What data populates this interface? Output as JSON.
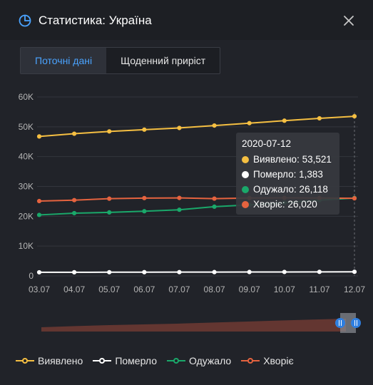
{
  "window": {
    "title": "Статистика: Україна",
    "icon": "pie-chart-icon",
    "close_icon": "close-icon"
  },
  "tabs": [
    {
      "label": "Поточні дані",
      "active": true
    },
    {
      "label": "Щоденний приріст",
      "active": false
    }
  ],
  "colors": {
    "confirmed": "#f5bf42",
    "deaths": "#ffffff",
    "recovered": "#1aa86a",
    "sick": "#e5633f",
    "accent": "#4aa3ff"
  },
  "tooltip": {
    "date": "2020-07-12",
    "rows": [
      {
        "label": "Виявлено: 53,521",
        "color": "#f5bf42"
      },
      {
        "label": "Померло: 1,383",
        "color": "#ffffff"
      },
      {
        "label": "Одужало: 26,118",
        "color": "#1aa86a"
      },
      {
        "label": "Хворіє: 26,020",
        "color": "#e5633f"
      }
    ]
  },
  "legend": [
    {
      "label": "Виявлено",
      "color": "#f5bf42"
    },
    {
      "label": "Померло",
      "color": "#ffffff"
    },
    {
      "label": "Одужало",
      "color": "#1aa86a"
    },
    {
      "label": "Хворіє",
      "color": "#e5633f"
    }
  ],
  "chart_data": {
    "type": "line",
    "x": [
      "03.07",
      "04.07",
      "05.07",
      "06.07",
      "07.07",
      "08.07",
      "09.07",
      "10.07",
      "11.07",
      "12.07"
    ],
    "y_ticks": [
      "0",
      "10K",
      "20K",
      "30K",
      "40K",
      "50K",
      "60K"
    ],
    "ylim": [
      0,
      60000
    ],
    "grid": true,
    "legend_position": "bottom",
    "series": [
      {
        "name": "Виявлено",
        "color": "#f5bf42",
        "values": [
          46763,
          47677,
          48447,
          49043,
          49607,
          50414,
          51224,
          52043,
          52843,
          53521
        ]
      },
      {
        "name": "Померло",
        "color": "#ffffff",
        "values": [
          1212,
          1226,
          1246,
          1255,
          1272,
          1283,
          1306,
          1327,
          1354,
          1383
        ]
      },
      {
        "name": "Одужало",
        "color": "#1aa86a",
        "values": [
          20453,
          21042,
          21302,
          21692,
          22182,
          23210,
          23808,
          24550,
          25388,
          26118
        ]
      },
      {
        "name": "Хворіє",
        "color": "#e5633f",
        "values": [
          25098,
          25409,
          25899,
          26096,
          26153,
          25921,
          26110,
          26166,
          26101,
          26020
        ]
      }
    ]
  }
}
